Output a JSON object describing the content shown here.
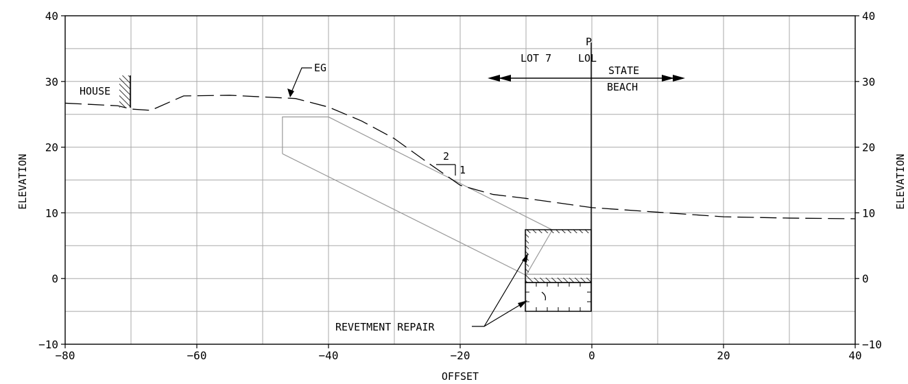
{
  "drawing": {
    "x_axis": {
      "title": "OFFSET",
      "range": [
        -80,
        40
      ],
      "major_ticks": [
        -80,
        -60,
        -40,
        -20,
        0,
        20,
        40
      ],
      "tick_labels": [
        "−80",
        "−60",
        "−40",
        "−20",
        "0",
        "20",
        "40"
      ],
      "minor_grid_step": 10
    },
    "y_axis": {
      "title": "ELEVATION",
      "range": [
        -10,
        40
      ],
      "major_ticks": [
        -10,
        0,
        10,
        20,
        30,
        40
      ],
      "tick_labels": [
        "−10",
        "0",
        "10",
        "20",
        "30",
        "40"
      ],
      "minor_grid_step": 5
    },
    "labels": {
      "house": "HOUSE",
      "eg": "EG",
      "lot": "LOT 7",
      "property_line_symbol": "P",
      "property_line_sub": "L",
      "lol": "LOL",
      "state": "STATE",
      "beach": "BEACH",
      "slope_run": "2",
      "slope_rise": "1",
      "revetment": "REVETMENT REPAIR"
    },
    "existing_grade": [
      [
        -80,
        26.7
      ],
      [
        -72,
        26.3
      ],
      [
        -70,
        25.8
      ],
      [
        -67,
        25.6
      ],
      [
        -62,
        27.8
      ],
      [
        -55,
        27.9
      ],
      [
        -45,
        27.4
      ],
      [
        -40,
        26.1
      ],
      [
        -35,
        24.0
      ],
      [
        -30,
        21.3
      ],
      [
        -25,
        17.7
      ],
      [
        -20,
        14.2
      ],
      [
        -15,
        12.8
      ],
      [
        -10,
        12.2
      ],
      [
        -5,
        11.5
      ],
      [
        0,
        10.8
      ],
      [
        10,
        10.1
      ],
      [
        20,
        9.4
      ],
      [
        30,
        9.2
      ],
      [
        40,
        9.1
      ]
    ],
    "slope_outline": [
      [
        -47,
        19
      ],
      [
        -47,
        24.6
      ],
      [
        -40,
        24.6
      ],
      [
        -6,
        7.4
      ],
      [
        -10,
        0.5
      ],
      [
        -47,
        19
      ]
    ],
    "colors": {
      "grid": "#a9a9a9",
      "ink": "#000000",
      "proposed": "#9a9a9a"
    }
  }
}
